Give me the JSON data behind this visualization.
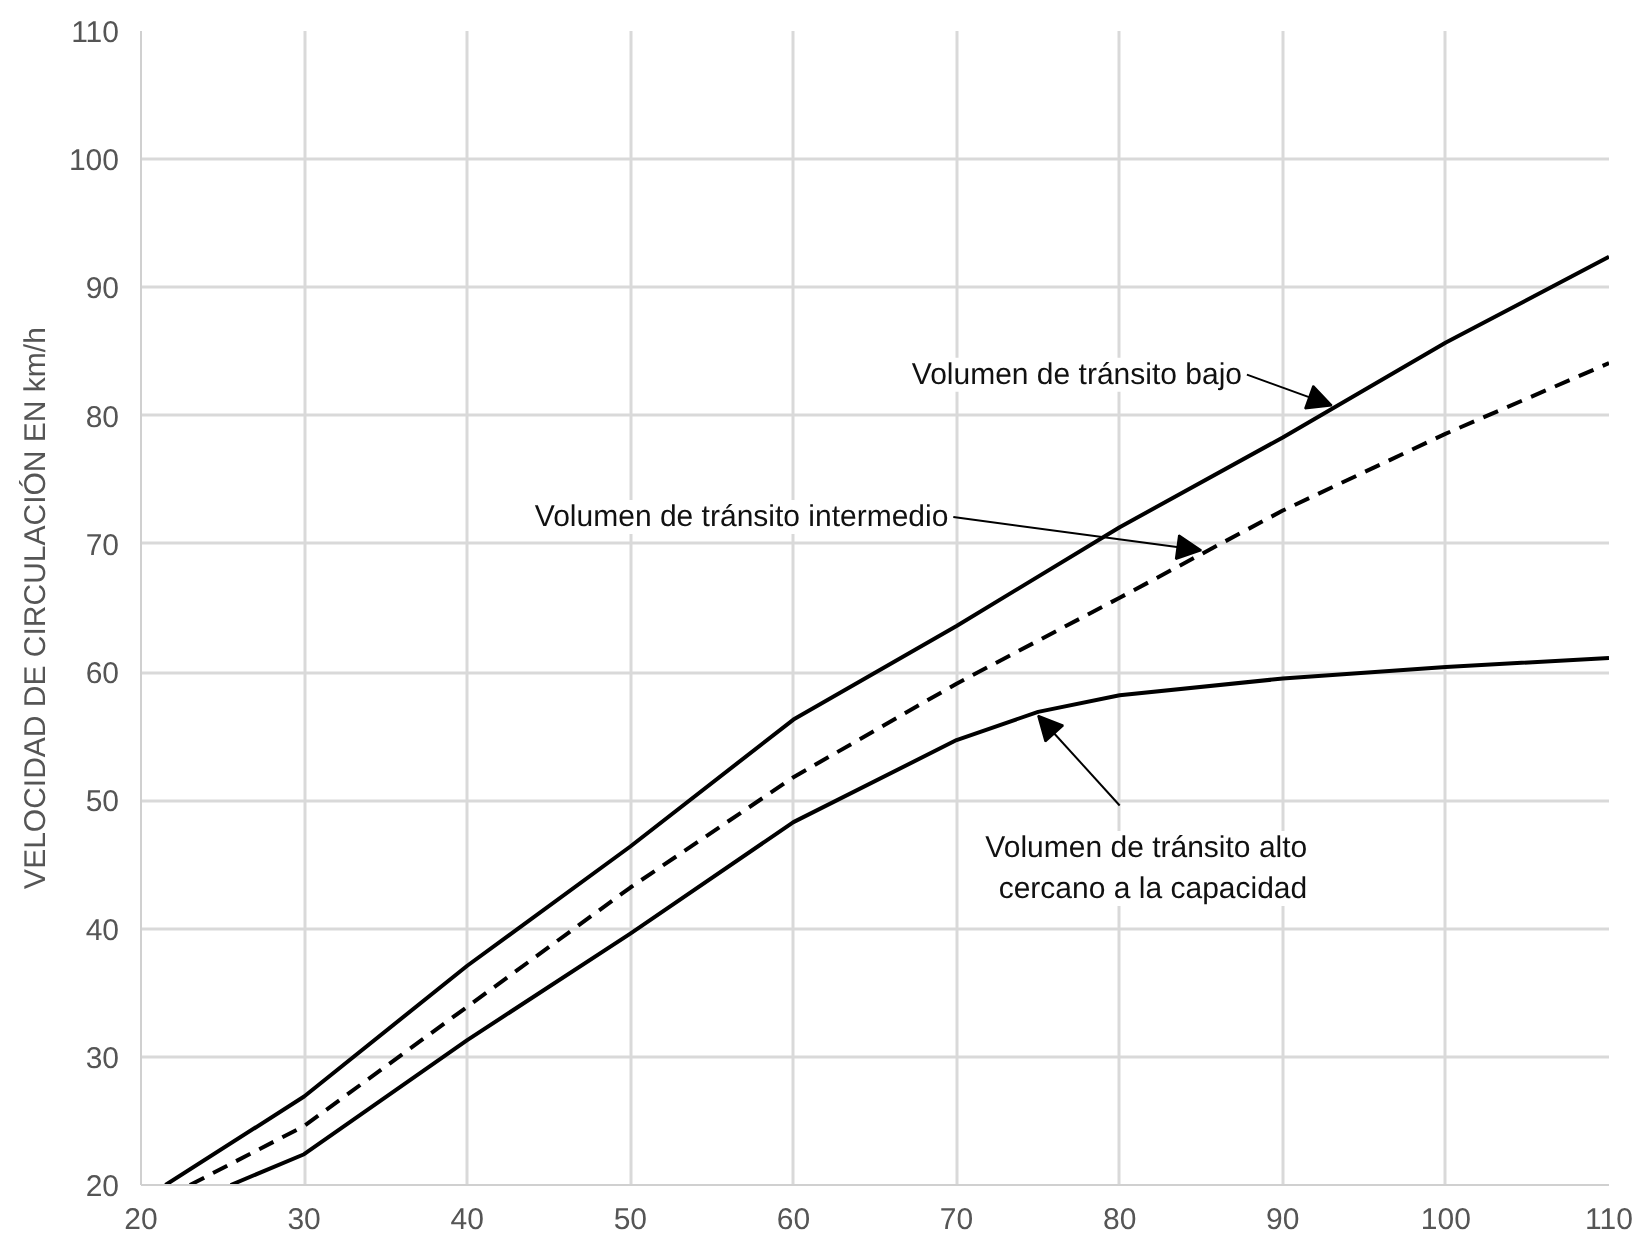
{
  "chart_data": {
    "type": "line",
    "ylabel": "VELOCIDAD DE CIRCULACIÓN EN km/h",
    "xlim": [
      20,
      110
    ],
    "ylim": [
      20,
      110
    ],
    "xticks": [
      20,
      30,
      40,
      50,
      60,
      70,
      80,
      90,
      100,
      110
    ],
    "yticks": [
      20,
      30,
      40,
      50,
      60,
      70,
      80,
      90,
      100,
      110
    ],
    "grid": true,
    "marker": "none",
    "series": [
      {
        "color": "#000000",
        "line_style": "solid",
        "x": [
          21.5,
          30,
          40,
          50,
          60,
          70,
          80,
          90,
          100,
          110
        ],
        "values": [
          20,
          26.9,
          37.1,
          46.4,
          56.3,
          63.6,
          71.3,
          78.3,
          85.7,
          92.4
        ]
      },
      {
        "color": "#000000",
        "line_style": "dashed",
        "x": [
          23,
          30,
          40,
          50,
          60,
          70,
          80,
          90,
          100,
          110
        ],
        "values": [
          20,
          24.6,
          33.9,
          43.2,
          51.8,
          59.1,
          65.8,
          72.6,
          78.6,
          84.1
        ]
      },
      {
        "color": "#000000",
        "line_style": "solid",
        "x": [
          25.5,
          30,
          40,
          50,
          60,
          70,
          75,
          80,
          90,
          100,
          110
        ],
        "values": [
          20,
          22.4,
          31.3,
          39.6,
          48.3,
          54.7,
          56.9,
          58.2,
          59.5,
          60.4,
          61.1
        ]
      }
    ],
    "annotations": [
      {
        "text": "Volumen de tránsito bajo",
        "x": 93,
        "y": 80.8
      },
      {
        "text": "Volumen de tránsito intermedio",
        "x": 85,
        "y": 69.5
      },
      {
        "text": "Volumen de tránsito alto\ncercano a la capacidad",
        "x": 75,
        "y": 56.6
      }
    ]
  }
}
